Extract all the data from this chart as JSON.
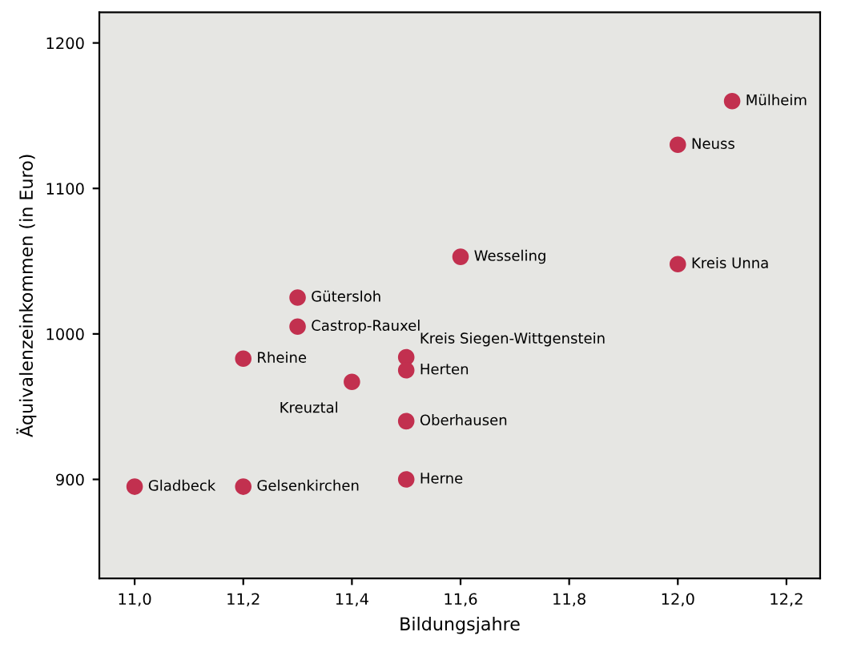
{
  "chart_data": {
    "type": "scatter",
    "xlabel": "Bildungsjahre",
    "ylabel": "Äquivalenzeinkommen (in Euro)",
    "xlim": [
      10.935,
      12.262
    ],
    "ylim": [
      832,
      1221
    ],
    "xticks": [
      {
        "value": 11.0,
        "label": "11,0"
      },
      {
        "value": 11.2,
        "label": "11,2"
      },
      {
        "value": 11.4,
        "label": "11,4"
      },
      {
        "value": 11.6,
        "label": "11,6"
      },
      {
        "value": 11.8,
        "label": "11,8"
      },
      {
        "value": 12.0,
        "label": "12,0"
      },
      {
        "value": 12.2,
        "label": "12,2"
      }
    ],
    "yticks": [
      900,
      1000,
      1100,
      1200
    ],
    "grid": false,
    "marker": "circle",
    "series": [
      {
        "color": "#c2304f",
        "x": [
          12.1,
          12.0,
          11.6,
          12.0,
          11.3,
          11.3,
          11.2,
          11.5,
          11.5,
          11.4,
          11.5,
          11.5,
          11.0,
          11.2
        ],
        "values": [
          1160,
          1130,
          1053,
          1048,
          1025,
          1005,
          983,
          984,
          975,
          967,
          940,
          900,
          895,
          895
        ]
      }
    ],
    "annotations": [
      {
        "text": "Mülheim",
        "x": 12.1,
        "y": 1160
      },
      {
        "text": "Neuss",
        "x": 12.0,
        "y": 1130
      },
      {
        "text": "Wesseling",
        "x": 11.6,
        "y": 1053
      },
      {
        "text": "Kreis Unna",
        "x": 12.0,
        "y": 1048
      },
      {
        "text": "Gütersloh",
        "x": 11.3,
        "y": 1025
      },
      {
        "text": "Castrop-Rauxel",
        "x": 11.3,
        "y": 1005
      },
      {
        "text": "Rheine",
        "x": 11.2,
        "y": 983
      },
      {
        "text": "Kreis Siegen-Wittgenstein",
        "x": 11.5,
        "y": 984
      },
      {
        "text": "Herten",
        "x": 11.5,
        "y": 975
      },
      {
        "text": "Kreuztal",
        "x": 11.4,
        "y": 967
      },
      {
        "text": "Oberhausen",
        "x": 11.5,
        "y": 940
      },
      {
        "text": "Herne",
        "x": 11.5,
        "y": 900
      },
      {
        "text": "Gladbeck",
        "x": 11.0,
        "y": 895
      },
      {
        "text": "Gelsenkirchen",
        "x": 11.2,
        "y": 895
      }
    ]
  }
}
